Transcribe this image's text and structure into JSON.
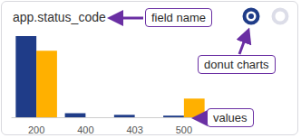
{
  "chart_data": {
    "type": "bar",
    "title": "app.status_code",
    "categories": [
      "200",
      "400",
      "403",
      "500"
    ],
    "series": [
      {
        "color": "#1f3c88",
        "values": [
          100,
          5,
          3,
          2
        ]
      },
      {
        "color": "#ffb000",
        "values": [
          82,
          0,
          0,
          23
        ]
      }
    ],
    "ylim": [
      0,
      100
    ],
    "grid": false,
    "tick_labels": "x",
    "annotations": [
      "field name",
      "donut charts",
      "values"
    ]
  }
}
